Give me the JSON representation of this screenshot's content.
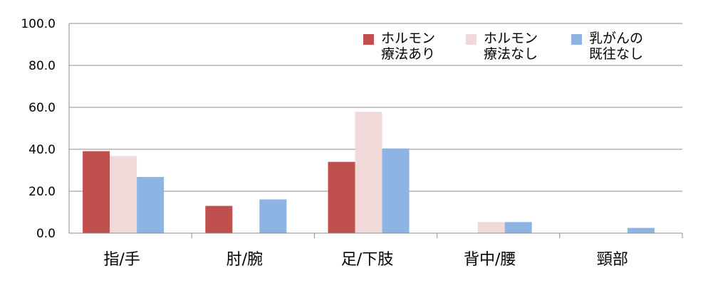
{
  "chart_data": {
    "type": "bar",
    "categories": [
      "指/手",
      "肘/腕",
      "足/下肢",
      "背中/腰",
      "頸部"
    ],
    "series": [
      {
        "name": "ホルモン\n療法あり",
        "values": [
          39.1,
          13.0,
          34.0,
          0,
          0
        ],
        "color": "#c0504d"
      },
      {
        "name": "ホルモン\n療法なし",
        "values": [
          36.8,
          0,
          57.9,
          5.3,
          0
        ],
        "color": "#f2d9d9"
      },
      {
        "name": "乳がんの\n既往なし",
        "values": [
          26.8,
          16.1,
          40.4,
          5.3,
          2.5
        ],
        "color": "#8eb4e3"
      }
    ],
    "yticks": [
      "0.0",
      "20.0",
      "40.0",
      "60.0",
      "80.0",
      "100.0"
    ],
    "ylim": [
      0,
      100
    ],
    "grid": true,
    "legend_position": "top-right"
  }
}
